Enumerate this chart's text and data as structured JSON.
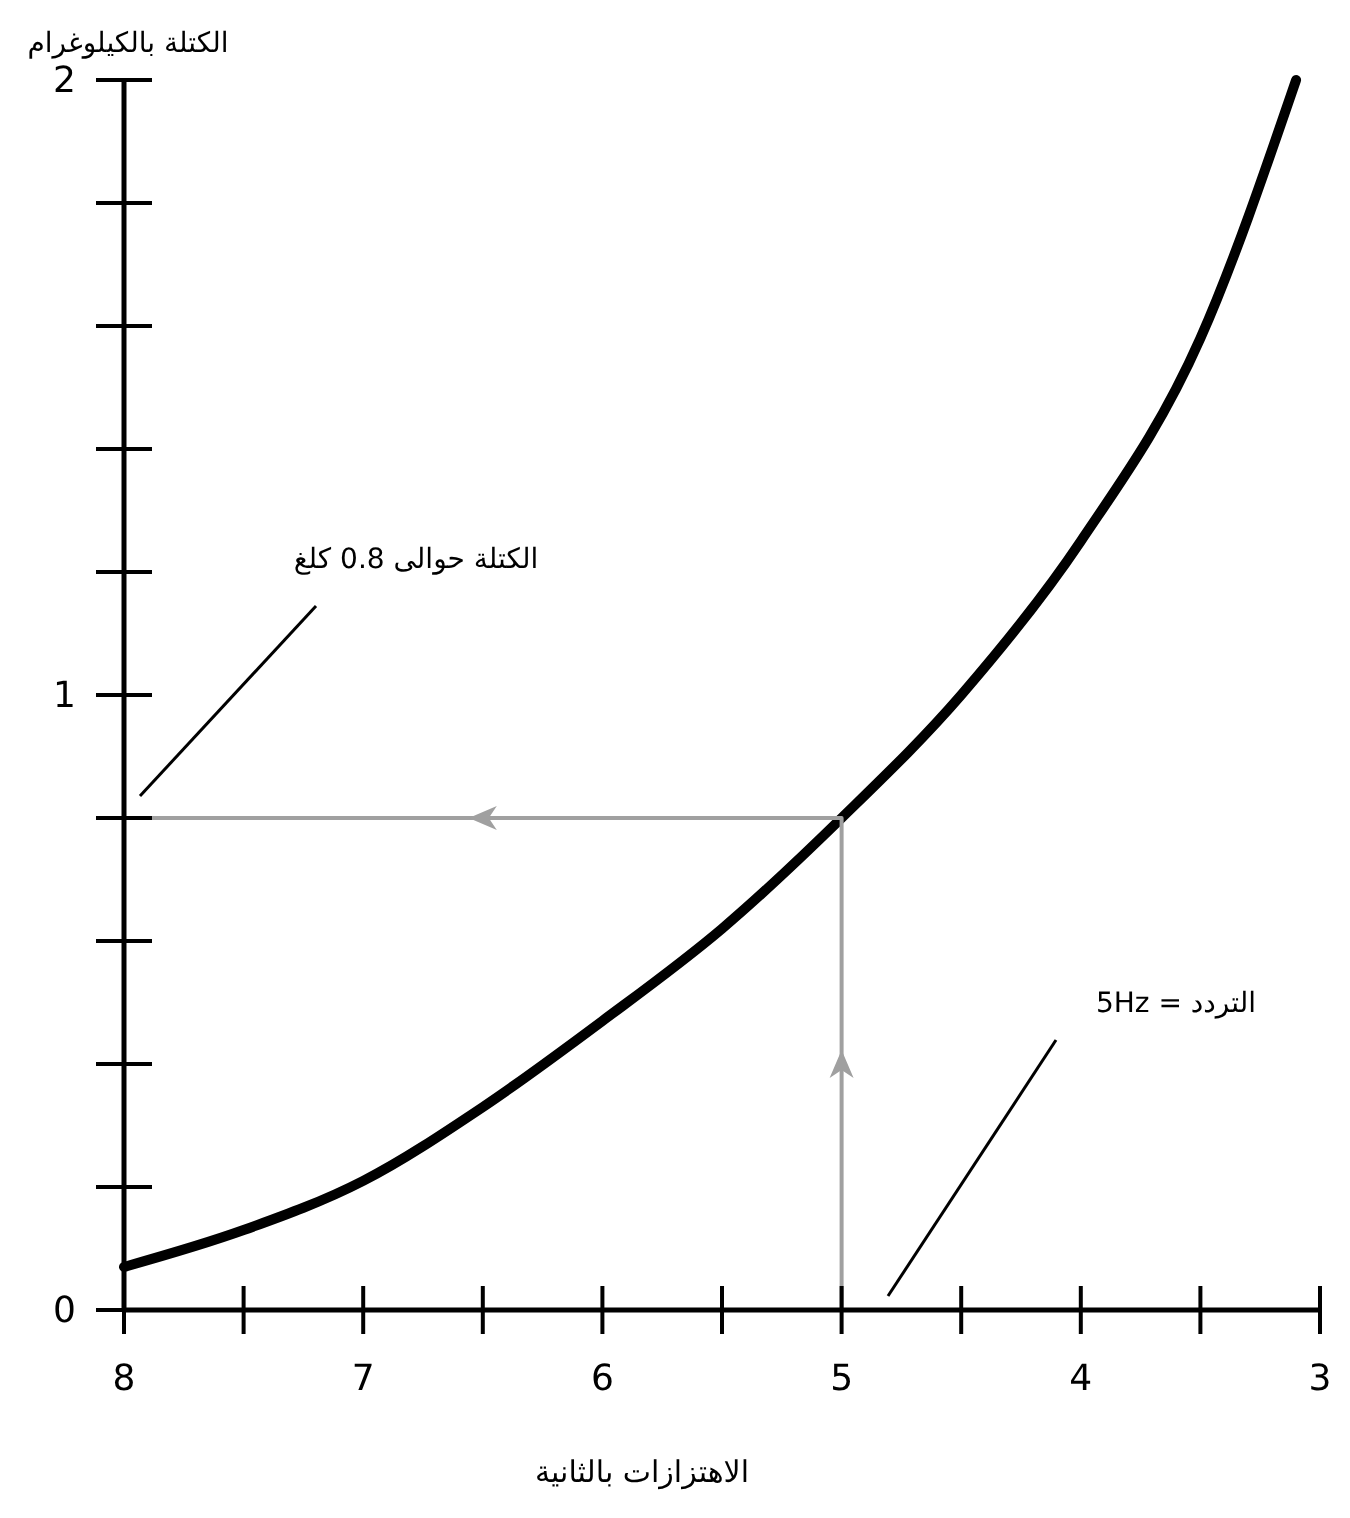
{
  "chart_data": {
    "type": "line",
    "xlabel": "الاهتزازات بالثانية",
    "ylabel": "الكتلة بالكيلوغرام",
    "xlim": [
      8,
      3
    ],
    "ylim": [
      0,
      2
    ],
    "xticks": [
      8,
      {
        "value": 7.5,
        "label": null
      },
      7,
      {
        "value": 6.5,
        "label": null
      },
      6,
      {
        "value": 5.5,
        "label": null
      },
      5,
      {
        "value": 4.5,
        "label": null
      },
      4,
      {
        "value": 3.5,
        "label": null
      },
      3
    ],
    "yticks": [
      0,
      {
        "value": 0.2,
        "label": null
      },
      {
        "value": 0.4,
        "label": null
      },
      {
        "value": 0.6,
        "label": null
      },
      {
        "value": 0.8,
        "label": null
      },
      1,
      {
        "value": 1.2,
        "label": null
      },
      {
        "value": 1.4,
        "label": null
      },
      {
        "value": 1.6,
        "label": null
      },
      {
        "value": 1.8,
        "label": null
      },
      2
    ],
    "grid": false,
    "marker": "none",
    "series": [
      {
        "color": "#000000",
        "x": [
          8,
          7.5,
          7,
          6.5,
          6,
          5.5,
          5,
          4.5,
          4,
          3.5,
          3.1
        ],
        "values": [
          0.07,
          0.13,
          0.21,
          0.33,
          0.47,
          0.62,
          0.8,
          1.0,
          1.25,
          1.58,
          2.0
        ]
      },
      {
        "color": "#a0a0a0",
        "x": [
          5,
          5,
          8
        ],
        "values": [
          0,
          0.8,
          0.8
        ]
      }
    ],
    "annotations": [
      "الكتلة حوالى 0.8 كلغ",
      "التردد = 5Hz"
    ]
  }
}
